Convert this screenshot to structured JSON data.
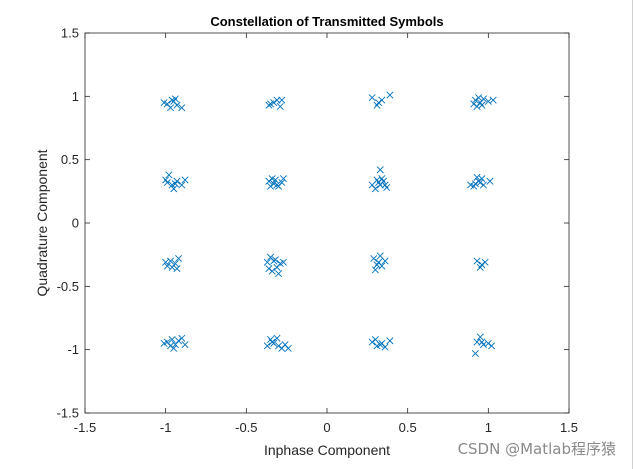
{
  "chart_data": {
    "type": "scatter",
    "title": "Constellation of Transmitted Symbols",
    "xlabel": "Inphase Component",
    "ylabel": "Quadrature Component",
    "xlim": [
      -1.5,
      1.5
    ],
    "ylim": [
      -1.5,
      1.5
    ],
    "xticks": [
      "-1.5",
      "-1",
      "-0.5",
      "0",
      "0.5",
      "1",
      "1.5"
    ],
    "yticks": [
      "-1.5",
      "-1",
      "-0.5",
      "0",
      "0.5",
      "1",
      "1.5"
    ],
    "marker": "x",
    "marker_color": "#0072bd",
    "grid": false,
    "constellation": "16-QAM",
    "cluster_centers": [
      {
        "x": -0.95,
        "y": 0.95
      },
      {
        "x": -0.32,
        "y": 0.95
      },
      {
        "x": 0.33,
        "y": 0.97
      },
      {
        "x": 0.95,
        "y": 0.95
      },
      {
        "x": -0.95,
        "y": 0.32
      },
      {
        "x": -0.32,
        "y": 0.32
      },
      {
        "x": 0.33,
        "y": 0.32
      },
      {
        "x": 0.95,
        "y": 0.32
      },
      {
        "x": -0.95,
        "y": -0.32
      },
      {
        "x": -0.32,
        "y": -0.32
      },
      {
        "x": 0.33,
        "y": -0.32
      },
      {
        "x": 0.95,
        "y": -0.32
      },
      {
        "x": -0.95,
        "y": -0.95
      },
      {
        "x": -0.32,
        "y": -0.95
      },
      {
        "x": 0.33,
        "y": -0.95
      },
      {
        "x": 0.95,
        "y": -0.95
      }
    ],
    "points": [
      [
        -0.99,
        0.94
      ],
      [
        -0.96,
        0.97
      ],
      [
        -0.93,
        0.93
      ],
      [
        -0.9,
        0.91
      ],
      [
        -0.97,
        0.91
      ],
      [
        -0.95,
        0.96
      ],
      [
        -1.01,
        0.95
      ],
      [
        -0.94,
        0.98
      ],
      [
        -0.35,
        0.94
      ],
      [
        -0.31,
        0.97
      ],
      [
        -0.29,
        0.92
      ],
      [
        -0.33,
        0.95
      ],
      [
        -0.28,
        0.97
      ],
      [
        -0.36,
        0.93
      ],
      [
        0.28,
        0.99
      ],
      [
        0.32,
        0.95
      ],
      [
        0.34,
        0.97
      ],
      [
        0.39,
        1.01
      ],
      [
        0.31,
        0.93
      ],
      [
        0.92,
        0.97
      ],
      [
        0.95,
        0.95
      ],
      [
        0.97,
        0.98
      ],
      [
        1.0,
        0.96
      ],
      [
        0.93,
        0.92
      ],
      [
        0.96,
        0.93
      ],
      [
        0.94,
        0.99
      ],
      [
        1.03,
        0.97
      ],
      [
        0.91,
        0.94
      ],
      [
        -0.98,
        0.38
      ],
      [
        -0.99,
        0.32
      ],
      [
        -0.96,
        0.3
      ],
      [
        -0.93,
        0.33
      ],
      [
        -0.9,
        0.3
      ],
      [
        -0.95,
        0.27
      ],
      [
        -1.0,
        0.34
      ],
      [
        -0.88,
        0.34
      ],
      [
        -0.94,
        0.31
      ],
      [
        -0.36,
        0.33
      ],
      [
        -0.33,
        0.31
      ],
      [
        -0.3,
        0.29
      ],
      [
        -0.34,
        0.35
      ],
      [
        -0.28,
        0.32
      ],
      [
        -0.31,
        0.3
      ],
      [
        -0.35,
        0.29
      ],
      [
        -0.27,
        0.35
      ],
      [
        -0.32,
        0.34
      ],
      [
        0.28,
        0.3
      ],
      [
        0.32,
        0.32
      ],
      [
        0.34,
        0.35
      ],
      [
        0.36,
        0.3
      ],
      [
        0.33,
        0.42
      ],
      [
        0.3,
        0.27
      ],
      [
        0.35,
        0.33
      ],
      [
        0.37,
        0.28
      ],
      [
        0.31,
        0.34
      ],
      [
        0.33,
        0.3
      ],
      [
        0.91,
        0.29
      ],
      [
        0.94,
        0.33
      ],
      [
        0.96,
        0.35
      ],
      [
        0.92,
        0.31
      ],
      [
        0.97,
        0.3
      ],
      [
        1.01,
        0.33
      ],
      [
        0.93,
        0.36
      ],
      [
        0.89,
        0.3
      ],
      [
        0.95,
        0.32
      ],
      [
        -0.99,
        -0.34
      ],
      [
        -0.97,
        -0.3
      ],
      [
        -0.94,
        -0.32
      ],
      [
        -0.92,
        -0.28
      ],
      [
        -0.96,
        -0.35
      ],
      [
        -1.0,
        -0.31
      ],
      [
        -0.93,
        -0.36
      ],
      [
        -0.35,
        -0.27
      ],
      [
        -0.33,
        -0.3
      ],
      [
        -0.31,
        -0.35
      ],
      [
        -0.29,
        -0.32
      ],
      [
        -0.36,
        -0.36
      ],
      [
        -0.32,
        -0.29
      ],
      [
        -0.27,
        -0.31
      ],
      [
        -0.34,
        -0.38
      ],
      [
        -0.3,
        -0.4
      ],
      [
        -0.37,
        -0.31
      ],
      [
        0.29,
        -0.28
      ],
      [
        0.32,
        -0.31
      ],
      [
        0.34,
        -0.34
      ],
      [
        0.3,
        -0.37
      ],
      [
        0.36,
        -0.3
      ],
      [
        0.33,
        -0.26
      ],
      [
        0.31,
        -0.33
      ],
      [
        0.93,
        -0.3
      ],
      [
        0.96,
        -0.33
      ],
      [
        0.95,
        -0.35
      ],
      [
        0.98,
        -0.31
      ],
      [
        -0.99,
        -0.94
      ],
      [
        -0.96,
        -0.92
      ],
      [
        -0.94,
        -0.96
      ],
      [
        -0.97,
        -0.97
      ],
      [
        -0.92,
        -0.93
      ],
      [
        -0.9,
        -0.91
      ],
      [
        -1.01,
        -0.95
      ],
      [
        -0.95,
        -0.99
      ],
      [
        -0.88,
        -0.96
      ],
      [
        -0.35,
        -0.92
      ],
      [
        -0.33,
        -0.95
      ],
      [
        -0.3,
        -0.97
      ],
      [
        -0.34,
        -0.94
      ],
      [
        -0.28,
        -0.99
      ],
      [
        -0.26,
        -0.96
      ],
      [
        -0.37,
        -0.97
      ],
      [
        -0.31,
        -0.91
      ],
      [
        -0.24,
        -0.99
      ],
      [
        0.28,
        -0.94
      ],
      [
        0.31,
        -0.97
      ],
      [
        0.34,
        -0.95
      ],
      [
        0.36,
        -0.98
      ],
      [
        0.3,
        -0.92
      ],
      [
        0.33,
        -0.96
      ],
      [
        0.39,
        -0.93
      ],
      [
        0.93,
        -0.94
      ],
      [
        0.95,
        -0.9
      ],
      [
        0.97,
        -0.96
      ],
      [
        1.0,
        -0.95
      ],
      [
        0.92,
        -1.03
      ],
      [
        0.96,
        -0.94
      ],
      [
        1.02,
        -0.97
      ]
    ]
  },
  "watermark": "CSDN @Matlab程序猿"
}
